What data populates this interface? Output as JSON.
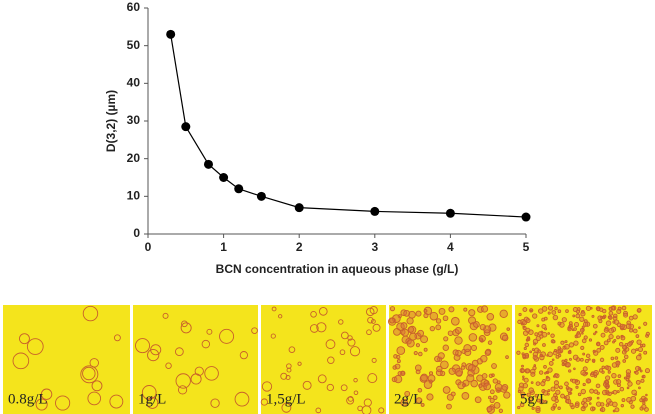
{
  "chart_data": {
    "type": "line",
    "x_label": "BCN concentration in aqueous phase (g/L)",
    "y_label": "D(3,2) (µm)",
    "x": [
      0.3,
      0.5,
      0.8,
      1.0,
      1.2,
      1.5,
      2,
      3,
      4,
      5
    ],
    "values": [
      53,
      28.5,
      18.5,
      15,
      12,
      10,
      7,
      6,
      5.5,
      4.5
    ],
    "color": "#000000",
    "xlim": [
      0,
      5
    ],
    "xticks": [
      0,
      1,
      2,
      3,
      4,
      5
    ],
    "ylim": [
      0,
      60
    ],
    "yticks": [
      0,
      10,
      20,
      30,
      40,
      50,
      60
    ]
  },
  "panels": [
    {
      "label": "0.8g/L"
    },
    {
      "label": "1g/L"
    },
    {
      "label": "1,5g/L"
    },
    {
      "label": "2g/L"
    },
    {
      "label": "5g/L"
    }
  ]
}
